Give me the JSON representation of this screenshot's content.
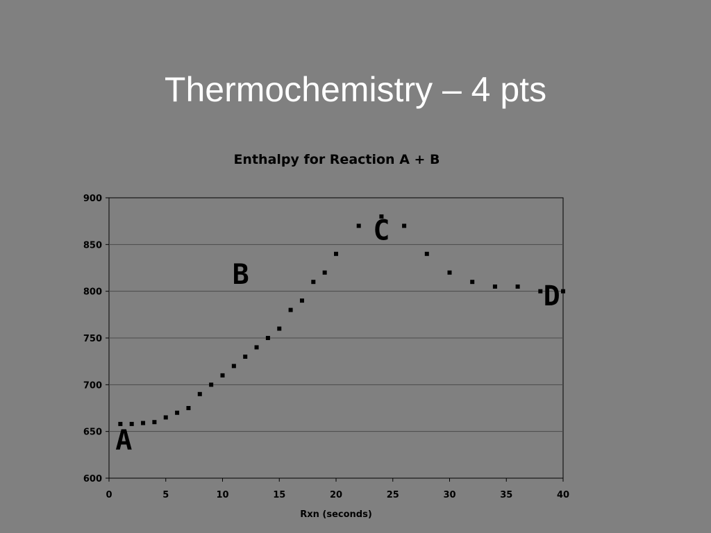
{
  "slide": {
    "title": "Thermochemistry – 4 pts"
  },
  "colors": {
    "background": "#808080",
    "marker": "#000000",
    "gridline": "#4a4a4a"
  },
  "chart_data": {
    "type": "scatter",
    "title": "Enthalpy for Reaction A + B",
    "xlabel": "Rxn (seconds)",
    "ylabel": "",
    "xlim": [
      0,
      40
    ],
    "ylim": [
      600,
      900
    ],
    "xticks": [
      0,
      5,
      10,
      15,
      20,
      25,
      30,
      35,
      40
    ],
    "yticks": [
      600,
      650,
      700,
      750,
      800,
      850,
      900
    ],
    "grid": "horizontal",
    "legend": "none",
    "series": [
      {
        "points": [
          [
            1,
            658
          ],
          [
            2,
            658
          ],
          [
            3,
            659
          ],
          [
            4,
            660
          ],
          [
            5,
            665
          ],
          [
            6,
            670
          ],
          [
            7,
            675
          ],
          [
            8,
            690
          ],
          [
            9,
            700
          ],
          [
            10,
            710
          ],
          [
            11,
            720
          ],
          [
            12,
            730
          ],
          [
            13,
            740
          ],
          [
            14,
            750
          ],
          [
            15,
            760
          ],
          [
            16,
            780
          ],
          [
            17,
            790
          ],
          [
            18,
            810
          ],
          [
            19,
            820
          ],
          [
            20,
            840
          ],
          [
            22,
            870
          ],
          [
            24,
            880
          ],
          [
            26,
            870
          ],
          [
            28,
            840
          ],
          [
            30,
            820
          ],
          [
            32,
            810
          ],
          [
            34,
            805
          ],
          [
            36,
            805
          ],
          [
            38,
            800
          ],
          [
            40,
            800
          ]
        ]
      }
    ],
    "annotations": [
      {
        "text": "A",
        "x": 1.3,
        "y": 631
      },
      {
        "text": "B",
        "x": 11.6,
        "y": 808
      },
      {
        "text": "C",
        "x": 24,
        "y": 855
      },
      {
        "text": "D",
        "x": 39,
        "y": 785
      }
    ]
  }
}
